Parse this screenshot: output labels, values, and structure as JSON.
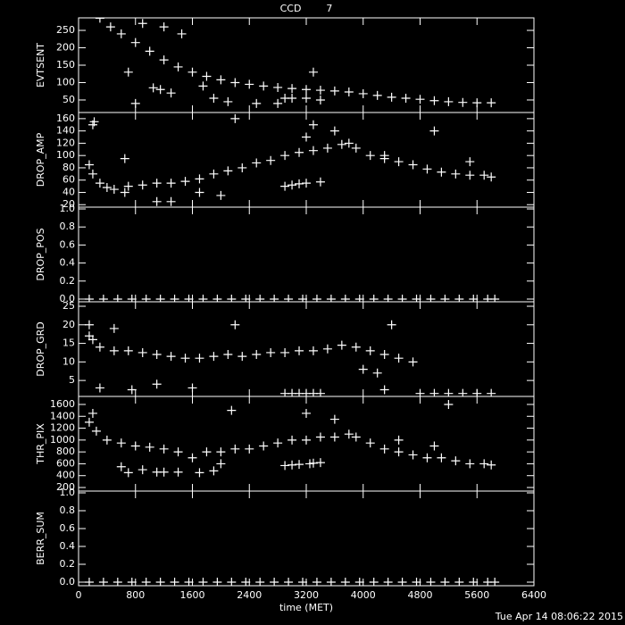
{
  "chart_data": [
    {
      "type": "scatter",
      "title": "CCD        7",
      "ylabel": "EVTSENT",
      "xlim": [
        0,
        6400
      ],
      "ylim": [
        14,
        286
      ],
      "yticks": [
        50,
        100,
        150,
        200,
        250
      ],
      "color": "#ffffff",
      "x": [
        300,
        450,
        600,
        800,
        1000,
        1200,
        1400,
        1600,
        1800,
        2000,
        2200,
        2400,
        2600,
        2800,
        3000,
        3200,
        3400,
        3600,
        3800,
        4000,
        4200,
        4400,
        4600,
        4800,
        5000,
        5200,
        5400,
        5600,
        5800,
        700,
        800,
        1050,
        1150,
        1300,
        1750,
        1900,
        2100,
        2900,
        3000,
        3200,
        3400,
        1200,
        900,
        3300,
        2500,
        2800,
        1450
      ],
      "y": [
        285,
        260,
        240,
        215,
        190,
        165,
        145,
        130,
        118,
        108,
        100,
        95,
        90,
        86,
        83,
        80,
        78,
        76,
        73,
        68,
        63,
        58,
        55,
        52,
        48,
        45,
        43,
        42,
        42,
        130,
        40,
        85,
        80,
        70,
        90,
        55,
        45,
        55,
        55,
        55,
        50,
        260,
        270,
        130,
        40,
        40,
        240
      ]
    },
    {
      "type": "scatter",
      "ylabel": "DROP_AMP",
      "xlim": [
        0,
        6400
      ],
      "ylim": [
        16,
        170
      ],
      "yticks": [
        20,
        40,
        60,
        80,
        100,
        120,
        140,
        160
      ],
      "color": "#ffffff",
      "x": [
        150,
        200,
        300,
        400,
        500,
        700,
        900,
        1100,
        1300,
        1500,
        1700,
        1900,
        2100,
        2300,
        2500,
        2700,
        2900,
        3100,
        3300,
        3500,
        3700,
        3800,
        3900,
        4100,
        4300,
        4500,
        4700,
        4900,
        5100,
        5300,
        5500,
        5700,
        5800,
        200,
        220,
        650,
        650,
        1100,
        1300,
        1700,
        2000,
        2900,
        3000,
        3100,
        3200,
        3400,
        3300,
        3600,
        5000,
        5500,
        2200,
        3200,
        4300
      ],
      "y": [
        85,
        70,
        55,
        48,
        45,
        50,
        52,
        55,
        55,
        58,
        62,
        70,
        75,
        80,
        88,
        92,
        100,
        105,
        108,
        112,
        118,
        120,
        112,
        100,
        95,
        90,
        85,
        78,
        73,
        70,
        68,
        68,
        65,
        150,
        155,
        95,
        40,
        25,
        25,
        40,
        35,
        50,
        52,
        54,
        55,
        57,
        150,
        140,
        140,
        90,
        160,
        130,
        100
      ]
    },
    {
      "type": "scatter",
      "ylabel": "DROP_POS",
      "xlim": [
        0,
        6400
      ],
      "ylim": [
        -0.03,
        1.02
      ],
      "yticks": [
        {
          "value": 0,
          "label": "0.0"
        },
        {
          "value": 0.2,
          "label": "0.2"
        },
        {
          "value": 0.4,
          "label": "0.4"
        },
        {
          "value": 0.6,
          "label": "0.6"
        },
        {
          "value": 0.8,
          "label": "0.8"
        },
        {
          "value": 1,
          "label": "1.0"
        }
      ],
      "color": "#ffffff",
      "x": [
        150,
        350,
        550,
        750,
        950,
        1150,
        1350,
        1550,
        1750,
        1950,
        2150,
        2350,
        2550,
        2750,
        2950,
        3150,
        3350,
        3550,
        3750,
        3950,
        4150,
        4350,
        4550,
        4750,
        4950,
        5150,
        5350,
        5550,
        5750,
        5850
      ],
      "y": [
        0,
        0,
        0,
        0,
        0,
        0,
        0,
        0,
        0,
        0,
        0,
        0,
        0,
        0,
        0,
        0,
        0,
        0,
        0,
        0,
        0,
        0,
        0,
        0,
        0,
        0,
        0,
        0,
        0,
        0
      ]
    },
    {
      "type": "scatter",
      "ylabel": "DROP_GRD",
      "xlim": [
        0,
        6400
      ],
      "ylim": [
        0.7,
        26.2
      ],
      "yticks": [
        5,
        10,
        15,
        20,
        25
      ],
      "color": "#ffffff",
      "x": [
        150,
        200,
        300,
        500,
        700,
        900,
        1100,
        1300,
        1500,
        1700,
        1900,
        2100,
        2300,
        2500,
        2700,
        2900,
        3100,
        3300,
        3500,
        3700,
        3900,
        4100,
        4300,
        4500,
        4700,
        150,
        500,
        2200,
        4400,
        300,
        750,
        1100,
        1600,
        4000,
        4200,
        4300,
        2900,
        3000,
        3100,
        3200,
        3300,
        3400,
        4800,
        5000,
        5200,
        5400,
        5600,
        5800
      ],
      "y": [
        17,
        16,
        14,
        13,
        13,
        12.5,
        12,
        11.5,
        11,
        11,
        11.5,
        12,
        11.5,
        12,
        12.5,
        12.5,
        13,
        13,
        13.5,
        14.5,
        14,
        13,
        12,
        11,
        10,
        20,
        19,
        20,
        20,
        3,
        2.5,
        4,
        3,
        8,
        7,
        2.5,
        1.5,
        1.5,
        1.5,
        1.5,
        1.5,
        1.5,
        1.5,
        1.5,
        1.5,
        1.5,
        1.5,
        1.5
      ]
    },
    {
      "type": "scatter",
      "ylabel": "THR_PIX",
      "xlim": [
        0,
        6400
      ],
      "ylim": [
        140,
        1735
      ],
      "yticks": [
        200,
        400,
        600,
        800,
        1000,
        1200,
        1400,
        1600
      ],
      "color": "#ffffff",
      "x": [
        150,
        250,
        400,
        600,
        800,
        1000,
        1200,
        1400,
        1600,
        1800,
        2000,
        2200,
        2400,
        2600,
        2800,
        3000,
        3200,
        3400,
        3600,
        3800,
        3900,
        4100,
        4300,
        4500,
        4700,
        4900,
        5100,
        5300,
        5500,
        5700,
        5800,
        200,
        600,
        700,
        900,
        1100,
        1200,
        1400,
        1700,
        1900,
        2150,
        2000,
        3200,
        3600,
        5200,
        2900,
        3000,
        3100,
        3250,
        3300,
        3400,
        5000,
        4500
      ],
      "y": [
        1300,
        1150,
        1000,
        950,
        900,
        880,
        850,
        800,
        700,
        800,
        800,
        850,
        850,
        900,
        950,
        1000,
        1000,
        1050,
        1050,
        1100,
        1050,
        950,
        850,
        800,
        750,
        700,
        700,
        650,
        600,
        600,
        580,
        1450,
        550,
        450,
        500,
        460,
        460,
        460,
        450,
        480,
        1500,
        600,
        1450,
        1350,
        1600,
        570,
        580,
        590,
        600,
        610,
        620,
        900,
        1000
      ]
    },
    {
      "type": "scatter",
      "ylabel": "BERR_SUM",
      "xlabel": "time (MET)",
      "xlim": [
        0,
        6400
      ],
      "xticks": [
        0,
        800,
        1600,
        2400,
        3200,
        4000,
        4800,
        5600,
        6400
      ],
      "ylim": [
        -0.04,
        1.02
      ],
      "yticks": [
        {
          "value": 0,
          "label": "0.0"
        },
        {
          "value": 0.2,
          "label": "0.2"
        },
        {
          "value": 0.4,
          "label": "0.4"
        },
        {
          "value": 0.6,
          "label": "0.6"
        },
        {
          "value": 0.8,
          "label": "0.8"
        },
        {
          "value": 1,
          "label": "1.0"
        }
      ],
      "color": "#ffffff",
      "x": [
        150,
        350,
        550,
        750,
        950,
        1150,
        1350,
        1550,
        1750,
        1950,
        2150,
        2350,
        2550,
        2750,
        2950,
        3150,
        3350,
        3550,
        3750,
        3950,
        4150,
        4350,
        4550,
        4750,
        4950,
        5150,
        5350,
        5550,
        5750,
        5850
      ],
      "y": [
        0,
        0,
        0,
        0,
        0,
        0,
        0,
        0,
        0,
        0,
        0,
        0,
        0,
        0,
        0,
        0,
        0,
        0,
        0,
        0,
        0,
        0,
        0,
        0,
        0,
        0,
        0,
        0,
        0,
        0
      ]
    }
  ],
  "timestamp": "Tue Apr 14 08:06:22 2015"
}
